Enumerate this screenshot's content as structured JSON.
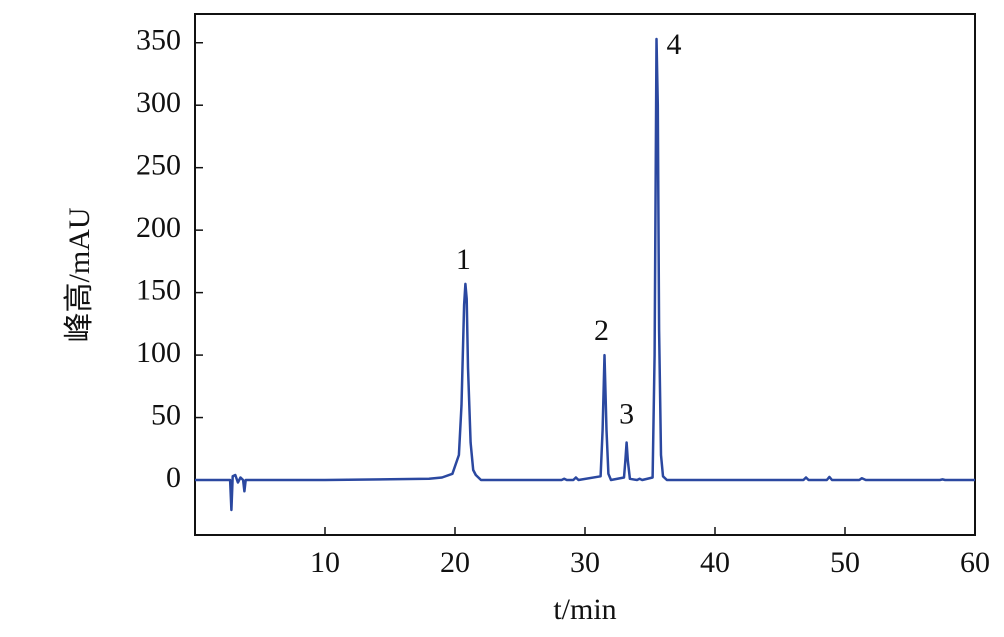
{
  "chart_data": {
    "type": "line",
    "x_label": "t/min",
    "y_label": "峰高/mAU",
    "x": [
      0,
      2.7,
      2.8,
      2.9,
      3.1,
      3.3,
      3.5,
      3.7,
      3.8,
      3.9,
      10,
      18,
      19,
      19.8,
      20.3,
      20.5,
      20.7,
      20.8,
      20.9,
      21.0,
      21.2,
      21.4,
      21.6,
      21.8,
      22,
      28.2,
      28.4,
      28.6,
      29.1,
      29.3,
      29.5,
      31.2,
      31.35,
      31.5,
      31.65,
      31.8,
      32,
      33.0,
      33.1,
      33.2,
      33.3,
      33.45,
      34,
      34.2,
      34.4,
      35.2,
      35.35,
      35.5,
      35.6,
      35.7,
      35.85,
      36,
      36.3,
      46.8,
      47,
      47.2,
      48.6,
      48.8,
      49,
      51.1,
      51.3,
      51.6,
      57.3,
      57.5,
      57.7,
      60
    ],
    "values": [
      0,
      0,
      -24,
      3,
      4,
      -2,
      2,
      0,
      -9,
      0,
      0,
      1,
      2,
      5,
      20,
      60,
      140,
      157,
      145,
      90,
      30,
      8,
      4,
      2,
      0,
      0,
      1,
      0,
      0,
      2,
      0,
      3,
      40,
      100,
      40,
      5,
      0,
      2,
      15,
      30,
      15,
      1,
      0,
      1,
      0,
      2,
      100,
      353,
      300,
      120,
      20,
      3,
      0,
      0,
      2,
      0,
      0,
      2.5,
      0,
      0,
      1.5,
      0,
      0,
      0.5,
      0,
      0
    ],
    "color": "#2b48a0",
    "annotations": [
      "1",
      "2",
      "3",
      "4"
    ],
    "xlim": [
      0,
      60
    ],
    "xticks": [
      10,
      20,
      30,
      40,
      50,
      60
    ],
    "ylim": [
      -44,
      373
    ],
    "yticks": [
      0,
      50,
      100,
      150,
      200,
      250,
      300,
      350
    ]
  }
}
